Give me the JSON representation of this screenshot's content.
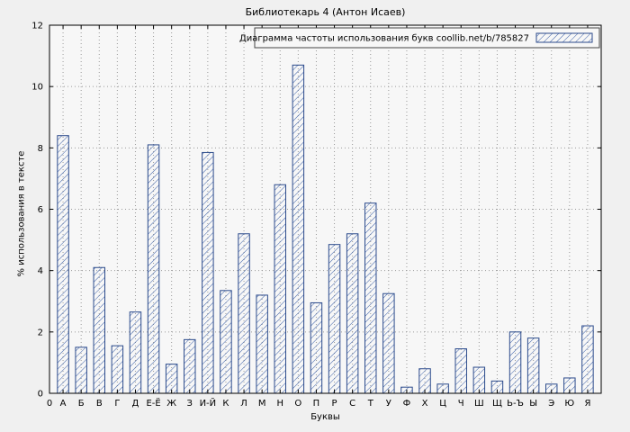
{
  "window": {
    "title": "Библиотекарь 4 (Антон Исаев)"
  },
  "chart_data": {
    "type": "bar",
    "title": "Библиотекарь 4 (Антон Исаев)",
    "legend": "Диаграмма частоты использования букв coollib.net/b/785827",
    "xlabel": "Буквы",
    "ylabel": "% использования в тексте",
    "origin_label": "0",
    "categories": [
      "А",
      "Б",
      "В",
      "Г",
      "Д",
      "Е-Ё",
      "Ж",
      "З",
      "И-Й",
      "К",
      "Л",
      "М",
      "Н",
      "О",
      "П",
      "Р",
      "С",
      "Т",
      "У",
      "Ф",
      "Х",
      "Ц",
      "Ч",
      "Ш",
      "Щ",
      "Ь-Ъ",
      "Ы",
      "Э",
      "Ю",
      "Я"
    ],
    "values": [
      8.4,
      1.5,
      4.1,
      1.55,
      2.65,
      8.1,
      0.95,
      1.75,
      7.85,
      3.35,
      5.2,
      3.2,
      6.8,
      10.7,
      2.95,
      4.85,
      5.2,
      6.2,
      3.25,
      0.2,
      0.8,
      0.3,
      1.45,
      0.85,
      0.4,
      2.0,
      1.8,
      0.3,
      0.5,
      2.2
    ],
    "ylim": [
      0,
      12
    ],
    "yticks": [
      0,
      2,
      4,
      6,
      8,
      10,
      12
    ],
    "grid": true,
    "legend_position": "top-right",
    "colors": {
      "bar_stroke": "#2b4a8b",
      "hatch": "#3a5fa8",
      "grid": "#9a9a9a",
      "axis": "#000000",
      "background": "#f0f0f0",
      "plot_background": "#f7f7f7",
      "legend_border": "#444444"
    }
  }
}
